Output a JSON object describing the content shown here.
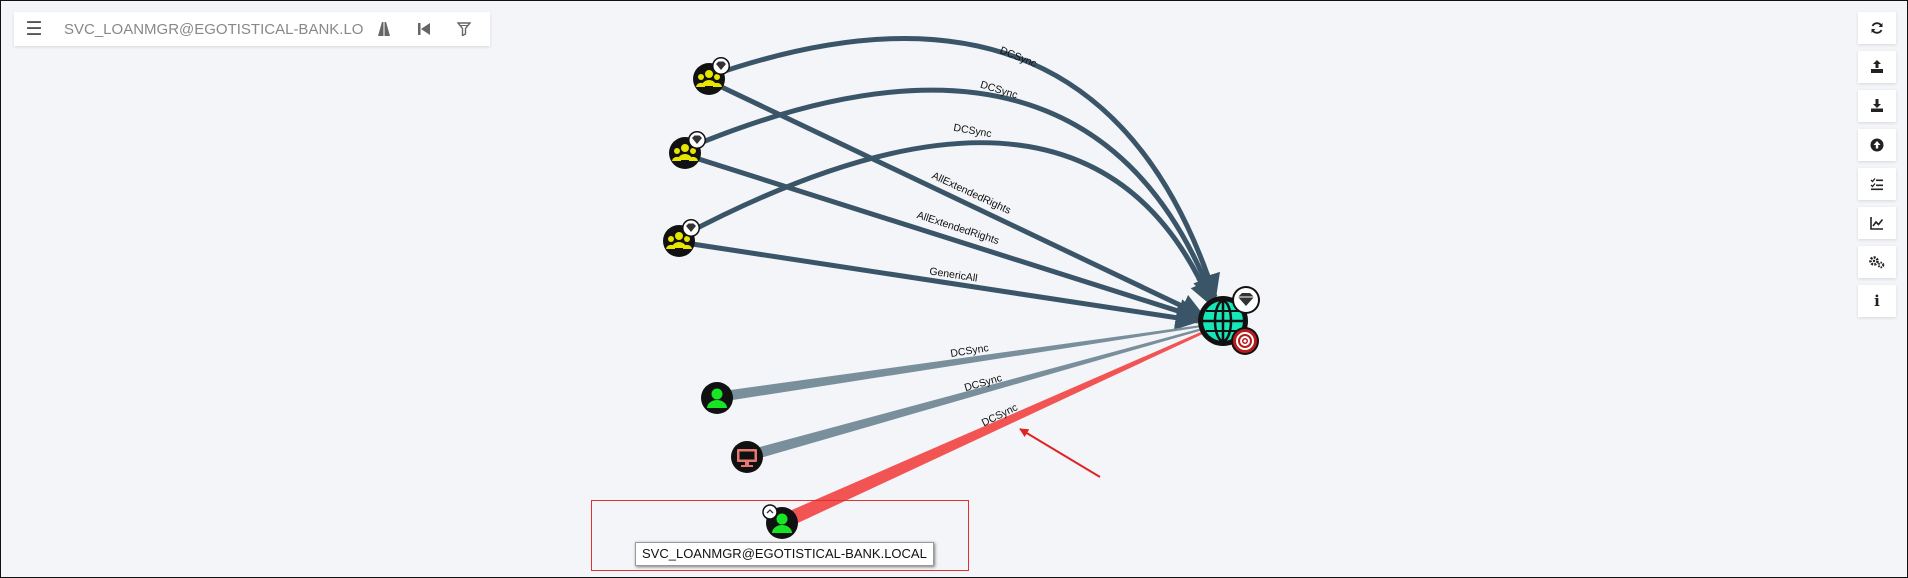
{
  "search": {
    "value": "SVC_LOANMGR@EGOTISTICAL-BANK.LOCA",
    "icons": [
      "menu-icon",
      "pathfinding-icon",
      "back-icon",
      "filter-icon"
    ]
  },
  "toolbar": {
    "buttons": [
      {
        "name": "refresh-button",
        "icon": "refresh-icon"
      },
      {
        "name": "export-button",
        "icon": "upload-icon"
      },
      {
        "name": "import-button",
        "icon": "download-icon"
      },
      {
        "name": "upload-data-button",
        "icon": "circle-up-icon"
      },
      {
        "name": "queries-button",
        "icon": "checklist-icon"
      },
      {
        "name": "stats-button",
        "icon": "chart-icon"
      },
      {
        "name": "settings-button",
        "icon": "gears-icon"
      },
      {
        "name": "about-button",
        "icon": "info-icon"
      }
    ],
    "about_label": "i"
  },
  "graph": {
    "colors": {
      "edge": "#3b5568",
      "edge_light": "#7a8f9c",
      "edge_highlight": "#f25454",
      "group_node": "#e6e600",
      "user_node": "#17e625",
      "computer_node": "#e67873",
      "domain_node": "#17e6b9",
      "target_badge": "#b71c1c"
    },
    "nodes": [
      {
        "id": "group1",
        "type": "group",
        "icon": "group-icon",
        "badge": "crown-icon"
      },
      {
        "id": "group2",
        "type": "group",
        "icon": "group-icon",
        "badge": "crown-icon"
      },
      {
        "id": "group3",
        "type": "group",
        "icon": "group-icon",
        "badge": "crown-icon"
      },
      {
        "id": "user1",
        "type": "user",
        "icon": "user-icon"
      },
      {
        "id": "computer1",
        "type": "computer",
        "icon": "computer-icon"
      },
      {
        "id": "user2",
        "type": "user",
        "icon": "user-icon",
        "label": "SVC_LOANMGR@EGOTISTICAL-BANK.LOCAL",
        "selected": true
      },
      {
        "id": "domain",
        "type": "domain",
        "icon": "globe-icon",
        "badge": "crown-icon",
        "target": true
      }
    ],
    "edges": [
      {
        "from": "group1",
        "to": "domain",
        "label": "DCSync"
      },
      {
        "from": "group2",
        "to": "domain",
        "label": "DCSync"
      },
      {
        "from": "group3",
        "to": "domain",
        "label": "DCSync"
      },
      {
        "from": "group1",
        "to": "domain",
        "label": "AllExtendedRights"
      },
      {
        "from": "group2",
        "to": "domain",
        "label": "AllExtendedRights"
      },
      {
        "from": "group3",
        "to": "domain",
        "label": "GenericAll"
      },
      {
        "from": "user1",
        "to": "domain",
        "label": "DCSync"
      },
      {
        "from": "computer1",
        "to": "domain",
        "label": "DCSync"
      },
      {
        "from": "user2",
        "to": "domain",
        "label": "DCSync"
      }
    ],
    "selected_label": "SVC_LOANMGR@EGOTISTICAL-BANK.LOCAL"
  }
}
